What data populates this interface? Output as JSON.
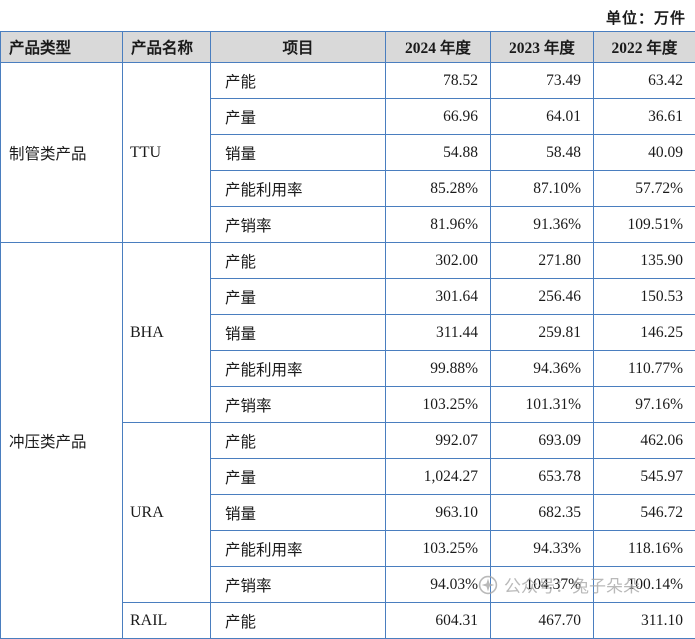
{
  "unit_label": "单位：万件",
  "colors": {
    "border": "#4a7ebf",
    "header_bg": "#d9d9d9",
    "text": "#1a1a1a",
    "watermark": "#a6a6a6"
  },
  "watermark": {
    "text": "公众号：兔子朵朵"
  },
  "table": {
    "headers": [
      "产品类型",
      "产品名称",
      "项目",
      "2024 年度",
      "2023 年度",
      "2022 年度"
    ],
    "groups": [
      {
        "type": "制管类产品",
        "products": [
          {
            "name": "TTU",
            "rows": [
              [
                "产能",
                "78.52",
                "73.49",
                "63.42"
              ],
              [
                "产量",
                "66.96",
                "64.01",
                "36.61"
              ],
              [
                "销量",
                "54.88",
                "58.48",
                "40.09"
              ],
              [
                "产能利用率",
                "85.28%",
                "87.10%",
                "57.72%"
              ],
              [
                "产销率",
                "81.96%",
                "91.36%",
                "109.51%"
              ]
            ]
          }
        ]
      },
      {
        "type": "冲压类产品",
        "products": [
          {
            "name": "BHA",
            "rows": [
              [
                "产能",
                "302.00",
                "271.80",
                "135.90"
              ],
              [
                "产量",
                "301.64",
                "256.46",
                "150.53"
              ],
              [
                "销量",
                "311.44",
                "259.81",
                "146.25"
              ],
              [
                "产能利用率",
                "99.88%",
                "94.36%",
                "110.77%"
              ],
              [
                "产销率",
                "103.25%",
                "101.31%",
                "97.16%"
              ]
            ]
          },
          {
            "name": "URA",
            "rows": [
              [
                "产能",
                "992.07",
                "693.09",
                "462.06"
              ],
              [
                "产量",
                "1,024.27",
                "653.78",
                "545.97"
              ],
              [
                "销量",
                "963.10",
                "682.35",
                "546.72"
              ],
              [
                "产能利用率",
                "103.25%",
                "94.33%",
                "118.16%"
              ],
              [
                "产销率",
                "94.03%",
                "104.37%",
                "100.14%"
              ]
            ]
          },
          {
            "name": "RAIL",
            "rows": [
              [
                "产能",
                "604.31",
                "467.70",
                "311.10"
              ]
            ]
          }
        ]
      }
    ]
  }
}
